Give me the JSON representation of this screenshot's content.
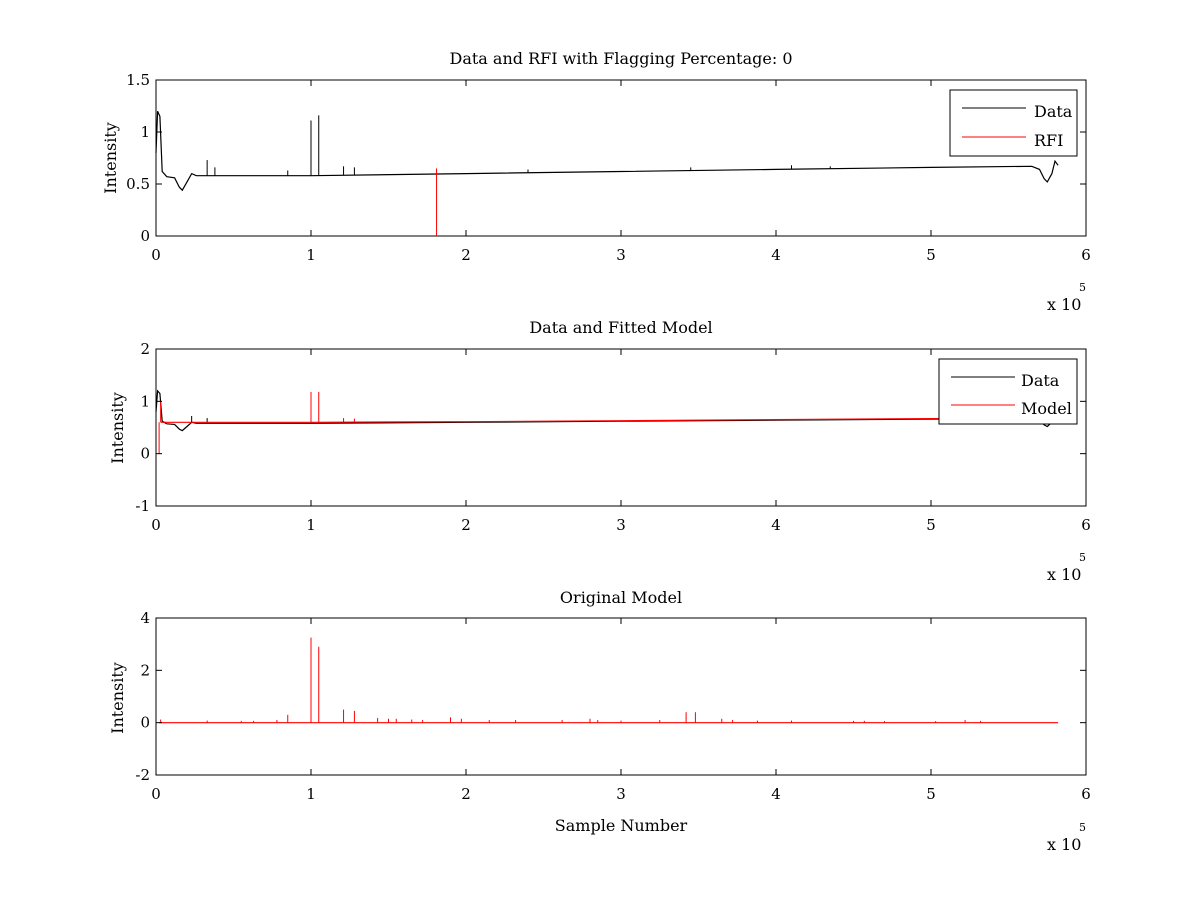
{
  "figure": {
    "background": "#ffffff",
    "data_color": "#000000",
    "model_color": "#ff0000"
  },
  "chart_data": [
    {
      "type": "line",
      "title": "Data and RFI with Flagging Percentage: 0",
      "xlabel": "",
      "ylabel": "Intensity",
      "xlim": [
        0,
        600000
      ],
      "ylim": [
        0,
        1.5
      ],
      "xticks": [
        0,
        1,
        2,
        3,
        4,
        5,
        6
      ],
      "xtick_labels": [
        "0",
        "1",
        "2",
        "3",
        "4",
        "5",
        "6"
      ],
      "x_exponent_label": "x 10",
      "x_exponent": "5",
      "yticks": [
        0,
        0.5,
        1,
        1.5
      ],
      "ytick_labels": [
        "0",
        "0.5",
        "1",
        "1.5"
      ],
      "legend": {
        "placement": "top-right",
        "entries": [
          "Data",
          "RFI"
        ]
      },
      "series": [
        {
          "name": "Data",
          "color": "#000000",
          "baseline": [
            [
              0,
              0.8
            ],
            [
              1000,
              1.2
            ],
            [
              2500,
              1.15
            ],
            [
              4000,
              0.62
            ],
            [
              7000,
              0.57
            ],
            [
              12000,
              0.56
            ],
            [
              15000,
              0.47
            ],
            [
              17000,
              0.44
            ],
            [
              20000,
              0.52
            ],
            [
              23000,
              0.6
            ],
            [
              26000,
              0.58
            ],
            [
              100000,
              0.58
            ],
            [
              200000,
              0.6
            ],
            [
              300000,
              0.62
            ],
            [
              400000,
              0.64
            ],
            [
              500000,
              0.66
            ],
            [
              565000,
              0.67
            ],
            [
              570000,
              0.64
            ],
            [
              573000,
              0.55
            ],
            [
              575000,
              0.52
            ],
            [
              578000,
              0.6
            ],
            [
              580000,
              0.72
            ],
            [
              582000,
              0.68
            ]
          ],
          "spikes": [
            [
              33000,
              0.73
            ],
            [
              38000,
              0.66
            ],
            [
              85000,
              0.63
            ],
            [
              100000,
              1.11
            ],
            [
              105000,
              1.16
            ],
            [
              121000,
              0.67
            ],
            [
              128000,
              0.66
            ],
            [
              240000,
              0.64
            ],
            [
              345000,
              0.66
            ],
            [
              410000,
              0.68
            ],
            [
              435000,
              0.67
            ]
          ]
        },
        {
          "name": "RFI",
          "color": "#ff0000",
          "spikes": [
            [
              181000,
              0.65
            ]
          ]
        }
      ]
    },
    {
      "type": "line",
      "title": "Data and Fitted Model",
      "xlabel": "",
      "ylabel": "Intensity",
      "xlim": [
        0,
        600000
      ],
      "ylim": [
        -1,
        2
      ],
      "xticks": [
        0,
        1,
        2,
        3,
        4,
        5,
        6
      ],
      "xtick_labels": [
        "0",
        "1",
        "2",
        "3",
        "4",
        "5",
        "6"
      ],
      "x_exponent_label": "x 10",
      "x_exponent": "5",
      "yticks": [
        -1,
        0,
        1,
        2
      ],
      "ytick_labels": [
        "-1",
        "0",
        "1",
        "2"
      ],
      "legend": {
        "placement": "top-right",
        "entries": [
          "Data",
          "Model"
        ]
      },
      "series": [
        {
          "name": "Data",
          "color": "#000000",
          "baseline": [
            [
              0,
              0.8
            ],
            [
              1000,
              1.2
            ],
            [
              2500,
              1.15
            ],
            [
              4000,
              0.62
            ],
            [
              7000,
              0.57
            ],
            [
              12000,
              0.56
            ],
            [
              15000,
              0.47
            ],
            [
              17000,
              0.44
            ],
            [
              20000,
              0.52
            ],
            [
              23000,
              0.6
            ],
            [
              26000,
              0.58
            ],
            [
              100000,
              0.58
            ],
            [
              200000,
              0.6
            ],
            [
              300000,
              0.62
            ],
            [
              400000,
              0.64
            ],
            [
              500000,
              0.66
            ],
            [
              565000,
              0.67
            ],
            [
              570000,
              0.64
            ],
            [
              573000,
              0.55
            ],
            [
              575000,
              0.52
            ],
            [
              578000,
              0.6
            ],
            [
              580000,
              0.72
            ],
            [
              582000,
              0.68
            ]
          ],
          "spikes": [
            [
              23000,
              0.72
            ],
            [
              33000,
              0.68
            ]
          ]
        },
        {
          "name": "Model",
          "color": "#ff0000",
          "baseline": [
            [
              3000,
              0.6
            ],
            [
              20000,
              0.6
            ],
            [
              100000,
              0.6
            ],
            [
              200000,
              0.61
            ],
            [
              300000,
              0.63
            ],
            [
              400000,
              0.65
            ],
            [
              500000,
              0.67
            ],
            [
              582000,
              0.68
            ]
          ],
          "spikes": [
            [
              2000,
              0.0
            ],
            [
              3000,
              1.0
            ],
            [
              100000,
              1.18
            ],
            [
              105000,
              1.18
            ],
            [
              121000,
              0.68
            ],
            [
              128000,
              0.67
            ]
          ]
        }
      ]
    },
    {
      "type": "line",
      "title": "Original Model",
      "xlabel": "Sample Number",
      "ylabel": "Intensity",
      "xlim": [
        0,
        600000
      ],
      "ylim": [
        -2,
        4
      ],
      "xticks": [
        0,
        1,
        2,
        3,
        4,
        5,
        6
      ],
      "xtick_labels": [
        "0",
        "1",
        "2",
        "3",
        "4",
        "5",
        "6"
      ],
      "x_exponent_label": "x 10",
      "x_exponent": "5",
      "yticks": [
        -2,
        0,
        2,
        4
      ],
      "ytick_labels": [
        "-2",
        "0",
        "2",
        "4"
      ],
      "series": [
        {
          "color": "#ff0000",
          "baseline": [
            [
              2000,
              0.0
            ],
            [
              582000,
              0.0
            ]
          ],
          "spikes": [
            [
              3000,
              0.12
            ],
            [
              33000,
              0.08
            ],
            [
              55000,
              0.07
            ],
            [
              63000,
              0.07
            ],
            [
              78000,
              0.1
            ],
            [
              85000,
              0.3
            ],
            [
              100000,
              3.25
            ],
            [
              105000,
              2.9
            ],
            [
              121000,
              0.5
            ],
            [
              128000,
              0.45
            ],
            [
              143000,
              0.18
            ],
            [
              150000,
              0.15
            ],
            [
              155000,
              0.15
            ],
            [
              165000,
              0.12
            ],
            [
              172000,
              0.1
            ],
            [
              190000,
              0.2
            ],
            [
              197000,
              0.15
            ],
            [
              215000,
              0.1
            ],
            [
              232000,
              0.1
            ],
            [
              262000,
              0.1
            ],
            [
              280000,
              0.15
            ],
            [
              285000,
              0.1
            ],
            [
              300000,
              0.08
            ],
            [
              325000,
              0.1
            ],
            [
              342000,
              0.4
            ],
            [
              348000,
              0.4
            ],
            [
              365000,
              0.15
            ],
            [
              372000,
              0.1
            ],
            [
              388000,
              0.08
            ],
            [
              410000,
              0.08
            ],
            [
              450000,
              0.07
            ],
            [
              457000,
              0.07
            ],
            [
              470000,
              0.06
            ],
            [
              503000,
              0.06
            ],
            [
              522000,
              0.1
            ],
            [
              532000,
              0.07
            ]
          ]
        }
      ]
    }
  ]
}
